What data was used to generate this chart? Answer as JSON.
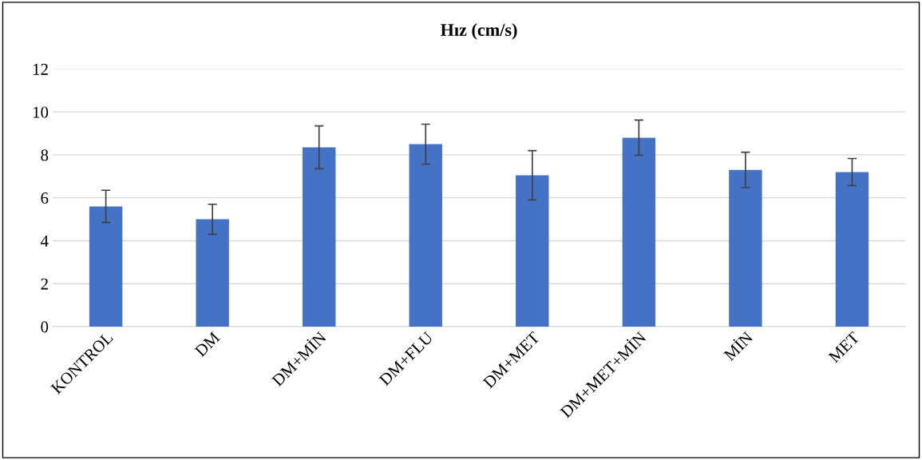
{
  "chart_data": {
    "type": "bar",
    "title": "Hız (cm/s)",
    "categories": [
      "KONTROL",
      "DM",
      "DM+MİN",
      "DM+FLU",
      "DM+MET",
      "DM+MET+MİN",
      "MİN",
      "MET"
    ],
    "values": [
      5.6,
      5.0,
      8.35,
      8.5,
      7.05,
      8.8,
      7.3,
      7.2
    ],
    "errors": [
      0.75,
      0.7,
      1.0,
      0.93,
      1.15,
      0.82,
      0.82,
      0.63
    ],
    "color": "#4472c4",
    "ylim": [
      0,
      12
    ],
    "yticks": [
      0,
      2,
      4,
      6,
      8,
      10,
      12
    ],
    "grid": "y"
  }
}
